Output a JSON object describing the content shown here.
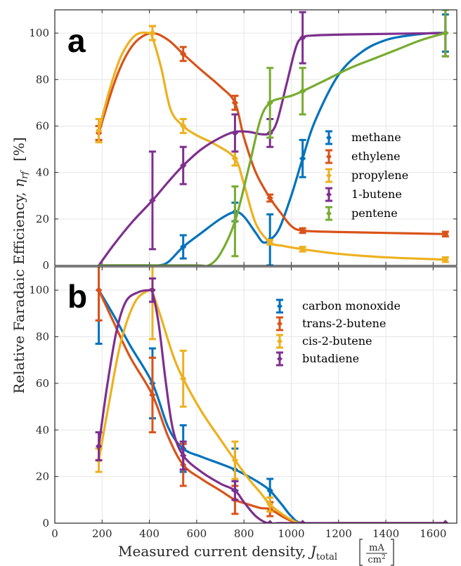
{
  "chart_data": [
    {
      "type": "line",
      "panel_label": "a",
      "x": [
        186,
        413,
        543,
        762,
        910,
        1048,
        1652
      ],
      "xlim": [
        0,
        1700
      ],
      "ylim": [
        0,
        110
      ],
      "xticks": [
        0,
        200,
        400,
        600,
        800,
        1000,
        1200,
        1400,
        1600
      ],
      "yticks": [
        0,
        20,
        40,
        60,
        80,
        100
      ],
      "xtick_labels": [
        "0",
        "200",
        "400",
        "600",
        "800",
        "1000",
        "1200",
        "1400",
        "1600"
      ],
      "ytick_labels": [
        "0",
        "20",
        "40",
        "60",
        "80",
        "100"
      ],
      "grid": true,
      "legend_position": "middle-right",
      "series": [
        {
          "name": "methane",
          "color": "#0072BD",
          "values": [
            null,
            null,
            8,
            23,
            11,
            46,
            100
          ],
          "errors": [
            null,
            null,
            5,
            4,
            11,
            8,
            8
          ],
          "curve_x": [
            186,
            300,
            400,
            440,
            480,
            543,
            620,
            700,
            762,
            800,
            850,
            880,
            910,
            950,
            1000,
            1048,
            1100,
            1200,
            1300,
            1400,
            1500,
            1600,
            1652
          ],
          "curve_y": [
            0,
            0,
            0,
            0,
            1.5,
            8,
            14,
            20,
            23,
            21,
            14,
            10,
            11,
            16,
            30,
            46,
            62,
            82,
            92,
            97,
            99,
            100,
            100
          ]
        },
        {
          "name": "ethylene",
          "color": "#D95319",
          "values": [
            57,
            100,
            91,
            70,
            29,
            15,
            13.5
          ],
          "errors": [
            3,
            3,
            3,
            3,
            1.5,
            1,
            1
          ],
          "curve_x": [
            186,
            250,
            300,
            350,
            413,
            480,
            543,
            620,
            700,
            762,
            800,
            850,
            910,
            960,
            1000,
            1048,
            1200,
            1400,
            1652
          ],
          "curve_y": [
            57,
            78,
            90,
            97,
            100,
            97,
            91,
            84,
            77,
            70,
            55,
            40,
            29,
            22,
            17,
            15,
            14.4,
            14,
            13.5
          ]
        },
        {
          "name": "propylene",
          "color": "#EDB120",
          "values": [
            58,
            100,
            60,
            46,
            10,
            7,
            2.5
          ],
          "errors": [
            5,
            3,
            3,
            3,
            1,
            1,
            1
          ],
          "curve_x": [
            186,
            230,
            280,
            340,
            400,
            413,
            450,
            490,
            543,
            600,
            680,
            762,
            800,
            850,
            910,
            960,
            1048,
            1200,
            1400,
            1652
          ],
          "curve_y": [
            58,
            75,
            90,
            99,
            100,
            98,
            85,
            67,
            60,
            56,
            52,
            46,
            35,
            18,
            10,
            8.5,
            7,
            5,
            3.5,
            2.5
          ]
        },
        {
          "name": "1-butene",
          "color": "#7E2F8E",
          "values": [
            null,
            28,
            43,
            57,
            57,
            98,
            100
          ],
          "errors": [
            null,
            21,
            8,
            8,
            6,
            11,
            10
          ],
          "curve_x": [
            186,
            250,
            330,
            413,
            480,
            543,
            620,
            700,
            762,
            820,
            870,
            910,
            940,
            980,
            1020,
            1048,
            1100,
            1300,
            1652
          ],
          "curve_y": [
            0,
            9,
            19,
            28,
            36,
            43,
            50,
            55,
            57.5,
            57.5,
            56.5,
            57,
            62,
            78,
            94,
            98,
            99,
            99.5,
            100
          ]
        },
        {
          "name": "pentene",
          "color": "#77AC30",
          "values": [
            null,
            null,
            null,
            19,
            70,
            75,
            100
          ],
          "errors": [
            null,
            null,
            null,
            15,
            15,
            10,
            10
          ],
          "curve_x": [
            186,
            400,
            600,
            650,
            700,
            762,
            820,
            870,
            910,
            960,
            1000,
            1048,
            1150,
            1250,
            1350,
            1450,
            1550,
            1652
          ],
          "curve_y": [
            0,
            0,
            0,
            0,
            5,
            19,
            42,
            63,
            70,
            72,
            73,
            75,
            80,
            85,
            89,
            93,
            97,
            100
          ]
        }
      ]
    },
    {
      "type": "line",
      "panel_label": "b",
      "x": [
        186,
        413,
        543,
        762,
        910,
        1048,
        1652
      ],
      "xlim": [
        0,
        1700
      ],
      "ylim": [
        0,
        110
      ],
      "xticks": [
        0,
        200,
        400,
        600,
        800,
        1000,
        1200,
        1400,
        1600
      ],
      "yticks": [
        0,
        20,
        40,
        60,
        80,
        100
      ],
      "xtick_labels": [
        "0",
        "200",
        "400",
        "600",
        "800",
        "1000",
        "1200",
        "1400",
        "1600"
      ],
      "ytick_labels": [
        "0",
        "20",
        "40",
        "60",
        "80",
        "100"
      ],
      "grid": true,
      "legend_position": "top-right",
      "series": [
        {
          "name": "carbon monoxide",
          "color": "#0072BD",
          "values": [
            100,
            60,
            32,
            23,
            14,
            0,
            0
          ],
          "errors": [
            23,
            15,
            10,
            9,
            5,
            0,
            0
          ],
          "curve_x": [
            186,
            250,
            320,
            413,
            480,
            543,
            620,
            700,
            762,
            820,
            870,
            910,
            960,
            1000,
            1048,
            1200,
            1400,
            1652
          ],
          "curve_y": [
            100,
            89,
            76,
            60,
            41,
            32,
            28.5,
            25.5,
            23,
            20,
            17,
            14,
            8,
            3,
            0,
            0,
            0,
            0
          ]
        },
        {
          "name": "trans-2-butene",
          "color": "#D95319",
          "values": [
            100,
            55,
            25,
            10,
            6,
            0,
            0
          ],
          "errors": [
            13,
            16,
            9,
            6,
            3,
            0,
            0
          ],
          "curve_x": [
            186,
            250,
            320,
            413,
            480,
            543,
            620,
            700,
            762,
            820,
            870,
            910,
            960,
            1000,
            1048,
            1200,
            1400,
            1652
          ],
          "curve_y": [
            100,
            86,
            71,
            55,
            37,
            25,
            19,
            14,
            10,
            8,
            6.5,
            6,
            3,
            1,
            0,
            0,
            0,
            0
          ]
        },
        {
          "name": "cis-2-butene",
          "color": "#EDB120",
          "values": [
            27,
            100,
            62,
            27,
            8,
            0,
            0
          ],
          "errors": [
            5,
            21,
            12,
            8,
            3,
            0,
            0
          ],
          "curve_x": [
            186,
            230,
            280,
            340,
            400,
            413,
            450,
            500,
            543,
            620,
            700,
            762,
            820,
            870,
            910,
            960,
            1000,
            1048,
            1200,
            1400,
            1652
          ],
          "curve_y": [
            27,
            52,
            78,
            95,
            100,
            99,
            88,
            72,
            62,
            48,
            36,
            27,
            19,
            13,
            8,
            4,
            1.5,
            0,
            0,
            0,
            0
          ]
        },
        {
          "name": "butadiene",
          "color": "#7E2F8E",
          "values": [
            33,
            100,
            29,
            14,
            0,
            0,
            0
          ],
          "errors": [
            6,
            5,
            6,
            4,
            0,
            0,
            0
          ],
          "curve_x": [
            186,
            220,
            260,
            300,
            350,
            400,
            413,
            440,
            470,
            500,
            543,
            620,
            700,
            762,
            800,
            850,
            900,
            950,
            1048,
            1200,
            1400,
            1652
          ],
          "curve_y": [
            33,
            58,
            82,
            95,
            99,
            100,
            99,
            85,
            60,
            40,
            29,
            22,
            17,
            14,
            9,
            3,
            0,
            0,
            0,
            0,
            0,
            0
          ]
        }
      ]
    }
  ],
  "xlabel_text": "Measured current density, ",
  "xlabel_symbol": "J",
  "xlabel_sub": "total",
  "xlabel_unit_num": "mA",
  "xlabel_unit_den": "cm",
  "xlabel_unit_den_exp": "2",
  "ylabel_text": "Relative Faradaic Efficiency, ",
  "ylabel_symbol": "η",
  "ylabel_sub": "rf",
  "ylabel_unit": "[%]"
}
